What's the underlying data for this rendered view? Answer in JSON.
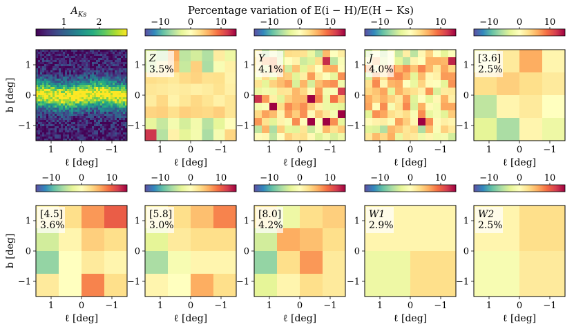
{
  "figure": {
    "title": "Percentage variation of E(i − H)/E(H − Ks)",
    "first_colorbar_label": "A_Ks",
    "xlabel": "ℓ [deg]",
    "ylabel": "b [deg]"
  },
  "colors": {
    "spectral": [
      "#5e4fa2",
      "#3288bd",
      "#66c2a5",
      "#abdda4",
      "#e6f598",
      "#ffffbf",
      "#fee08b",
      "#fdae61",
      "#f46d43",
      "#d53e4f",
      "#9e0142"
    ],
    "viridis": [
      "#440154",
      "#472c7a",
      "#3b518b",
      "#2c718e",
      "#21908d",
      "#27ad81",
      "#5cc863",
      "#aadc32",
      "#fde725"
    ]
  },
  "chart_data": [
    {
      "type": "heatmap",
      "panel": "A_Ks",
      "colorbar": {
        "label": "A_Ks",
        "ticks": [
          1,
          2
        ],
        "range": [
          0.2,
          2.8
        ],
        "cmap": "viridis"
      },
      "xlim": [
        1.5,
        -1.5
      ],
      "ylim": [
        -1.5,
        1.5
      ],
      "xticks": [
        1,
        0,
        -1
      ],
      "yticks": [
        1,
        0,
        -1
      ],
      "description_values": "continuous extinction map, high (~2.5) along b≈0, low (~0.4) at |b|>1"
    },
    {
      "type": "heatmap",
      "panel": "Z",
      "label": "Z",
      "scatter_pct": "3.5%",
      "colorbar": {
        "ticks": [
          -10,
          0,
          10
        ],
        "range": [
          -15,
          15
        ],
        "cmap": "spectral"
      },
      "xlim": [
        1.5,
        -1.5
      ],
      "ylim": [
        -1.5,
        1.5
      ],
      "xticks": [
        1,
        0,
        -1
      ],
      "yticks": [
        1,
        0,
        -1
      ],
      "grid_shape": [
        8,
        8
      ]
    },
    {
      "type": "heatmap",
      "panel": "Y",
      "label": "Y",
      "scatter_pct": "4.1%",
      "colorbar": {
        "ticks": [
          -10,
          0,
          10
        ],
        "range": [
          -15,
          15
        ],
        "cmap": "spectral"
      },
      "xlim": [
        1.5,
        -1.5
      ],
      "ylim": [
        -1.5,
        1.5
      ],
      "xticks": [
        1,
        0,
        -1
      ],
      "yticks": [
        1,
        0,
        -1
      ],
      "grid_shape": [
        12,
        12
      ]
    },
    {
      "type": "heatmap",
      "panel": "J",
      "label": "J",
      "scatter_pct": "4.0%",
      "colorbar": {
        "ticks": [
          -10,
          0,
          10
        ],
        "range": [
          -15,
          15
        ],
        "cmap": "spectral"
      },
      "xlim": [
        1.5,
        -1.5
      ],
      "ylim": [
        -1.5,
        1.5
      ],
      "xticks": [
        1,
        0,
        -1
      ],
      "yticks": [
        1,
        0,
        -1
      ],
      "grid_shape": [
        12,
        12
      ]
    },
    {
      "type": "heatmap",
      "panel": "[3.6]",
      "label": "[3.6]",
      "scatter_pct": "2.5%",
      "colorbar": {
        "ticks": [
          -10,
          0,
          10
        ],
        "range": [
          -15,
          15
        ],
        "cmap": "spectral"
      },
      "xlim": [
        1.5,
        -1.5
      ],
      "ylim": [
        -1.5,
        1.5
      ],
      "xticks": [
        1,
        0,
        -1
      ],
      "yticks": [
        1,
        0,
        -1
      ],
      "grid": [
        [
          0,
          2,
          6,
          1
        ],
        [
          3,
          4,
          3,
          2
        ],
        [
          -5,
          1,
          2,
          0
        ],
        [
          -3,
          -6,
          1,
          -2
        ]
      ]
    },
    {
      "type": "heatmap",
      "panel": "[4.5]",
      "label": "[4.5]",
      "scatter_pct": "3.6%",
      "colorbar": {
        "ticks": [
          -10,
          0,
          10
        ],
        "range": [
          -15,
          15
        ],
        "cmap": "spectral"
      },
      "xlim": [
        1.5,
        -1.5
      ],
      "ylim": [
        -1.5,
        1.5
      ],
      "xticks": [
        1,
        0,
        -1
      ],
      "yticks": [
        1,
        0,
        -1
      ],
      "grid": [
        [
          1,
          3,
          7,
          10
        ],
        [
          -4,
          1,
          4,
          3
        ],
        [
          -7,
          0,
          2,
          1
        ],
        [
          2,
          0,
          8,
          3
        ]
      ]
    },
    {
      "type": "heatmap",
      "panel": "[5.8]",
      "label": "[5.8]",
      "scatter_pct": "3.0%",
      "colorbar": {
        "ticks": [
          -10,
          0,
          10
        ],
        "range": [
          -15,
          15
        ],
        "cmap": "spectral"
      },
      "xlim": [
        1.5,
        -1.5
      ],
      "ylim": [
        -1.5,
        1.5
      ],
      "xticks": [
        1,
        0,
        -1
      ],
      "yticks": [
        1,
        0,
        -1
      ],
      "grid": [
        [
          1,
          3,
          5,
          8
        ],
        [
          -3,
          2,
          3,
          3
        ],
        [
          -6,
          -1,
          1,
          1
        ],
        [
          1,
          0,
          6,
          3
        ]
      ]
    },
    {
      "type": "heatmap",
      "panel": "[8.0]",
      "label": "[8.0]",
      "scatter_pct": "4.2%",
      "colorbar": {
        "ticks": [
          -10,
          0,
          10
        ],
        "range": [
          -15,
          15
        ],
        "cmap": "spectral"
      },
      "xlim": [
        1.5,
        -1.5
      ],
      "ylim": [
        -1.5,
        1.5
      ],
      "xticks": [
        1,
        0,
        -1
      ],
      "yticks": [
        1,
        0,
        -1
      ],
      "grid": [
        [
          2,
          -2,
          3,
          4
        ],
        [
          -4,
          6,
          5,
          3
        ],
        [
          -7,
          3,
          7,
          2
        ],
        [
          -3,
          1,
          3,
          2
        ]
      ]
    },
    {
      "type": "heatmap",
      "panel": "W1",
      "label": "W1",
      "scatter_pct": "2.9%",
      "colorbar": {
        "ticks": [
          -10,
          0,
          10
        ],
        "range": [
          -15,
          15
        ],
        "cmap": "spectral"
      },
      "xlim": [
        1.5,
        -1.5
      ],
      "ylim": [
        -1.5,
        1.5
      ],
      "xticks": [
        1,
        0,
        -1
      ],
      "yticks": [
        1,
        0,
        -1
      ],
      "grid": [
        [
          1,
          1
        ],
        [
          -2,
          3
        ]
      ]
    },
    {
      "type": "heatmap",
      "panel": "W2",
      "label": "W2",
      "scatter_pct": "2.5%",
      "colorbar": {
        "ticks": [
          -10,
          0,
          10
        ],
        "range": [
          -15,
          15
        ],
        "cmap": "spectral"
      },
      "xlim": [
        1.5,
        -1.5
      ],
      "ylim": [
        -1.5,
        1.5
      ],
      "xticks": [
        1,
        0,
        -1
      ],
      "yticks": [
        1,
        0,
        -1
      ],
      "grid": [
        [
          1,
          3
        ],
        [
          -1,
          2
        ]
      ]
    }
  ]
}
